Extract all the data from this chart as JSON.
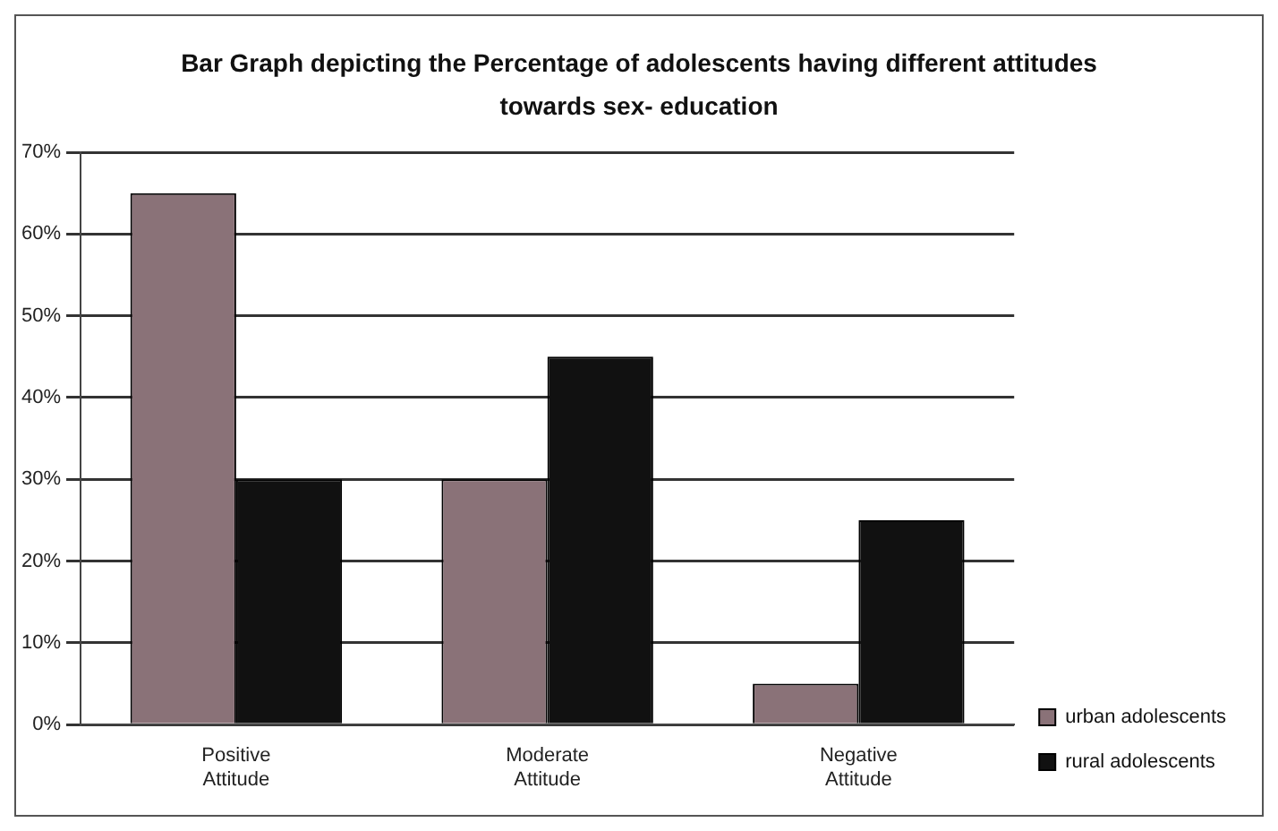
{
  "chart_data": {
    "type": "bar",
    "title": "Bar Graph depicting the Percentage of adolescents having different attitudes towards sex- education",
    "categories": [
      "Positive Attitude",
      "Moderate Attitude",
      "Negative Attitude"
    ],
    "series": [
      {
        "name": "urban adolescents",
        "color": "#8a7278",
        "values": [
          65,
          30,
          5
        ]
      },
      {
        "name": "rural adolescents",
        "color": "#111111",
        "values": [
          30,
          45,
          25
        ]
      }
    ],
    "ylim": [
      0,
      70
    ],
    "yticks": [
      {
        "value": 0,
        "label": "0%"
      },
      {
        "value": 10,
        "label": "10%"
      },
      {
        "value": 20,
        "label": "20%"
      },
      {
        "value": 30,
        "label": "30%"
      },
      {
        "value": 40,
        "label": "40%"
      },
      {
        "value": 50,
        "label": "50%"
      },
      {
        "value": 60,
        "label": "60%"
      },
      {
        "value": 70,
        "label": "70%"
      }
    ],
    "grid": "y",
    "legend": "right"
  }
}
